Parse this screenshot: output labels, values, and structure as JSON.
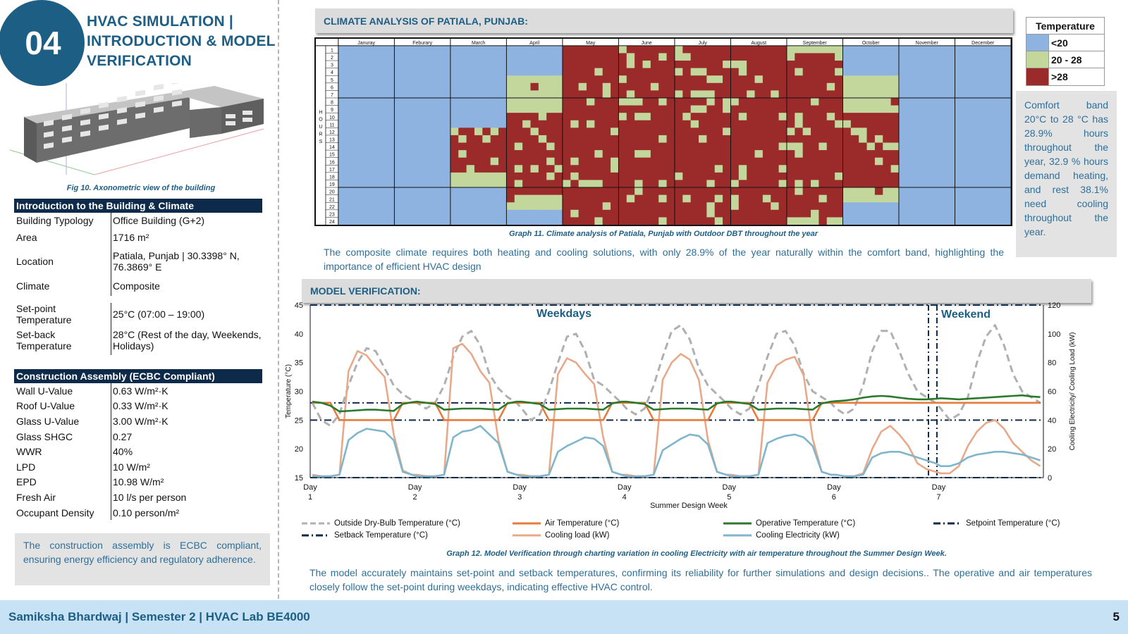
{
  "header": {
    "number": "04",
    "title_line1": "HVAC SIMULATION |",
    "title_line2": "INTRODUCTION & MODEL",
    "title_line3": "VERIFICATION"
  },
  "figure_caption": "Fig 10. Axonometric view of the building",
  "intro_table": {
    "heading": "Introduction to the Building & Climate",
    "rows": [
      {
        "k": "Building Typology",
        "v": "Office Building (G+2)"
      },
      {
        "k": "Area",
        "v": "1716 m²"
      },
      {
        "k": "Location",
        "v": "Patiala, Punjab | 30.3398° N, 76.3869° E"
      },
      {
        "k": "Climate",
        "v": "Composite"
      },
      {
        "k": "Set-point Temperature",
        "v": "25°C (07:00 – 19:00)"
      },
      {
        "k": "Set-back Temperature",
        "v": "28°C (Rest of the day, Weekends, Holidays)"
      }
    ]
  },
  "construction_table": {
    "heading": "Construction Assembly (ECBC Compliant)",
    "rows": [
      {
        "k": "Wall U-Value",
        "v": "0.63 W/m²·K"
      },
      {
        "k": "Roof U-Value",
        "v": "0.33 W/m²·K"
      },
      {
        "k": "Glass U-Value",
        "v": "3.00 W/m²·K"
      },
      {
        "k": "Glass SHGC",
        "v": "0.27"
      },
      {
        "k": "WWR",
        "v": "40%"
      },
      {
        "k": "LPD",
        "v": "10 W/m²"
      },
      {
        "k": "EPD",
        "v": "10.98 W/m²"
      },
      {
        "k": "Fresh Air",
        "v": "10 l/s per person"
      },
      {
        "k": "Occupant Density",
        "v": "0.10 person/m²"
      }
    ]
  },
  "construction_note": "The construction assembly is ECBC compliant, ensuring energy efficiency and regulatory adherence.",
  "climate_section": {
    "title": "CLIMATE ANALYSIS OF PATIALA, PUNJAB:",
    "caption": "Graph 11. Climate analysis of Patiala, Punjab with Outdoor DBT throughout the year",
    "paragraph": "The composite climate requires both heating and cooling solutions, with only 28.9% of the year naturally within the comfort band, highlighting the importance of efficient HVAC design",
    "hours_label": "HOURS",
    "legend_title": "Temperature",
    "legend": [
      {
        "label": "<20",
        "color": "#8fb3e0"
      },
      {
        "label": "20 - 28",
        "color": "#c3d69b"
      },
      {
        "label": ">28",
        "color": "#9b2a2a"
      }
    ],
    "side_note": "Comfort band 20°C to 28 °C has 28.9% hours throughout the year, 32.9 % hours demand heating, and rest 38.1% need cooling throughout the year."
  },
  "model_section": {
    "title": "MODEL VERIFICATION:",
    "caption": "Graph 12. Model Verification through charting variation in cooling Electricity with air temperature throughout the Summer Design Week.",
    "paragraph": "The model accurately maintains set-point and setback temperatures, confirming its reliability for further simulations and design decisions.. The operative and air temperatures closely follow the set-point during weekdays, indicating effective HVAC control."
  },
  "chart_data": [
    {
      "type": "heatmap",
      "title": "",
      "x_categories": [
        "Januray",
        "Feburary",
        "March",
        "April",
        "May",
        "June",
        "July",
        "August",
        "September",
        "October",
        "November",
        "December"
      ],
      "y_categories": [
        "1",
        "2",
        "3",
        "4",
        "5",
        "6",
        "7",
        "8",
        "9",
        "10",
        "11",
        "12",
        "13",
        "14",
        "15",
        "16",
        "17",
        "18",
        "19",
        "20",
        "21",
        "22",
        "23",
        "24"
      ],
      "ylabel": "HOURS",
      "classes": [
        "<20",
        "20 - 28",
        ">28"
      ],
      "hot_hour_start_by_month": [
        24,
        24,
        12,
        10,
        1,
        1,
        1,
        1,
        2,
        10,
        24,
        24
      ],
      "hot_hour_end_by_month": [
        0,
        0,
        17,
        20,
        24,
        24,
        24,
        24,
        23,
        19,
        0,
        0
      ],
      "cold_hour_end_by_month": [
        24,
        24,
        11,
        4,
        0,
        0,
        0,
        0,
        0,
        4,
        24,
        24
      ],
      "cold_hour_start_by_month": [
        0,
        0,
        20,
        23,
        25,
        25,
        25,
        25,
        25,
        22,
        0,
        0
      ],
      "comfort_percent": 28.9,
      "heating_percent": 32.9,
      "cooling_percent": 38.1
    },
    {
      "type": "line",
      "title": "",
      "xlabel": "Summer Design Week",
      "ylabel": "Temperature (°C)",
      "y2label": "Cooling Electricity/ Cooling Load (kW)",
      "ylim": [
        15,
        45
      ],
      "y2lim": [
        0,
        120
      ],
      "yticks": [
        15,
        20,
        25,
        30,
        35,
        40,
        45
      ],
      "y2ticks": [
        0,
        20,
        40,
        60,
        80,
        100,
        120
      ],
      "x_tick_labels": [
        [
          "Day",
          "1"
        ],
        [
          "Day",
          "2"
        ],
        [
          "Day",
          "3"
        ],
        [
          "Day",
          "4"
        ],
        [
          "Day",
          "5"
        ],
        [
          "Day",
          "6"
        ],
        [
          "Day",
          "7"
        ]
      ],
      "region_labels": [
        "Weekdays",
        "Weekend"
      ],
      "series": [
        {
          "name": "Outside Dry-Bulb Temperature (°C)",
          "axis": "left",
          "color": "#b0b0b0",
          "style": "dashed",
          "values_by_day": [
            [
              28,
              25,
              24,
              26,
              31,
              35,
              37.5,
              37,
              34,
              31,
              29.5,
              28.5
            ],
            [
              28,
              27,
              28,
              31,
              36,
              39.5,
              40.5,
              38,
              33,
              30.5,
              29,
              28
            ],
            [
              27,
              25,
              26,
              30,
              35,
              39.5,
              40,
              37,
              32,
              31,
              29.5,
              28
            ],
            [
              27,
              26,
              27,
              31,
              36,
              40.5,
              41.5,
              39,
              34,
              31,
              29.5,
              28
            ],
            [
              27,
              26,
              27,
              31,
              36,
              40,
              40.5,
              38,
              33,
              30,
              29,
              28
            ],
            [
              27,
              26,
              27,
              31,
              37,
              40.5,
              40.5,
              37,
              33,
              30,
              29,
              28
            ],
            [
              27,
              25,
              26,
              29,
              35,
              39.5,
              41.5,
              38,
              33,
              30,
              29,
              28
            ]
          ]
        },
        {
          "name": "Air Temperature (°C)",
          "axis": "left",
          "color": "#e87a3c",
          "style": "solid",
          "values_by_day": [
            [
              28,
              28,
              28,
              25,
              25,
              25,
              25,
              25,
              25,
              25,
              28,
              28
            ],
            [
              28,
              28,
              28,
              25,
              25,
              25,
              25,
              25,
              25,
              25,
              28,
              28
            ],
            [
              28,
              28,
              28,
              25,
              25,
              25,
              25,
              25,
              25,
              25,
              28,
              28
            ],
            [
              28,
              28,
              28,
              25,
              25,
              25,
              25,
              25,
              25,
              25,
              28,
              28
            ],
            [
              28,
              28,
              28,
              25,
              25,
              25,
              25,
              25,
              25,
              25,
              28,
              28
            ],
            [
              28,
              28,
              28,
              28,
              28,
              28,
              28,
              28,
              28,
              28,
              28,
              28
            ],
            [
              28,
              28,
              28,
              28,
              28,
              28,
              28,
              28,
              28,
              28,
              28,
              28
            ]
          ]
        },
        {
          "name": "Operative Temperature (°C)",
          "axis": "left",
          "color": "#2a7a2e",
          "style": "solid",
          "values_by_day": [
            [
              28.2,
              28,
              27.5,
              26.5,
              26.6,
              26.7,
              26.8,
              26.8,
              26.7,
              26.6,
              27.8,
              28.1
            ],
            [
              28.2,
              28,
              27.8,
              26.8,
              26.9,
              27,
              27,
              27,
              26.9,
              26.8,
              27.9,
              28.2
            ],
            [
              28.2,
              28,
              27.8,
              26.8,
              26.9,
              27,
              27,
              27,
              26.9,
              26.8,
              27.9,
              28.2
            ],
            [
              28.2,
              28,
              27.8,
              26.8,
              26.9,
              27,
              27,
              27,
              26.9,
              26.8,
              27.9,
              28.2
            ],
            [
              28.2,
              28,
              27.8,
              26.8,
              26.9,
              27,
              27,
              27,
              26.9,
              26.8,
              27.9,
              28.2
            ],
            [
              28.3,
              28.4,
              28.6,
              28.9,
              29.1,
              29.2,
              29.1,
              28.9,
              28.7,
              28.6,
              28.6,
              28.7
            ],
            [
              28.8,
              28.7,
              28.6,
              28.7,
              28.8,
              28.9,
              29,
              29.1,
              29.2,
              29.3,
              29.1,
              29
            ]
          ]
        },
        {
          "name": "Setpoint Temperature (°C)",
          "axis": "left",
          "color": "#0e2a4a",
          "style": "dashdot",
          "value": 25
        },
        {
          "name": "Setback Temperature (°C)",
          "axis": "left",
          "color": "#0e2a4a",
          "style": "dashdot",
          "value": 28
        },
        {
          "name": "Cooling load (kW)",
          "axis": "right",
          "color": "#e7a98a",
          "style": "solid",
          "values_by_day": [
            [
              2,
              1,
              1,
              2,
              74,
              88,
              85,
              77,
              70,
              30,
              5,
              2
            ],
            [
              2,
              1,
              1,
              2,
              90,
              93,
              86,
              74,
              66,
              26,
              4,
              2
            ],
            [
              2,
              1,
              1,
              2,
              72,
              83,
              80,
              72,
              65,
              28,
              4,
              2
            ],
            [
              2,
              1,
              1,
              2,
              68,
              80,
              86,
              82,
              68,
              26,
              4,
              2
            ],
            [
              2,
              1,
              1,
              2,
              66,
              78,
              82,
              84,
              71,
              27,
              4,
              2
            ],
            [
              2,
              1,
              1,
              3,
              20,
              32,
              36,
              30,
              22,
              10,
              6,
              4
            ],
            [
              3,
              3,
              8,
              22,
              32,
              38,
              40,
              34,
              24,
              18,
              12,
              8
            ]
          ]
        },
        {
          "name": "Cooling Electricity (kW)",
          "axis": "right",
          "color": "#7fb6cc",
          "style": "solid",
          "values_by_day": [
            [
              1,
              1,
              1,
              2,
              26,
              31,
              34,
              33,
              32,
              26,
              4,
              2
            ],
            [
              1,
              1,
              1,
              2,
              28,
              32,
              33,
              36,
              30,
              24,
              4,
              2
            ],
            [
              1,
              1,
              1,
              2,
              18,
              22,
              25,
              28,
              27,
              22,
              4,
              2
            ],
            [
              1,
              1,
              1,
              2,
              19,
              23,
              27,
              30,
              29,
              23,
              4,
              2
            ],
            [
              1,
              1,
              1,
              2,
              24,
              27,
              29,
              30,
              28,
              22,
              4,
              2
            ],
            [
              2,
              1,
              1,
              2,
              14,
              17,
              18,
              18,
              16,
              14,
              12,
              10
            ],
            [
              8,
              8,
              10,
              14,
              16,
              17,
              18,
              18,
              17,
              16,
              14,
              12
            ]
          ]
        }
      ]
    }
  ],
  "footer": {
    "text": "Samiksha Bhardwaj | Semester 2 | HVAC Lab BE4000",
    "page": "5"
  }
}
